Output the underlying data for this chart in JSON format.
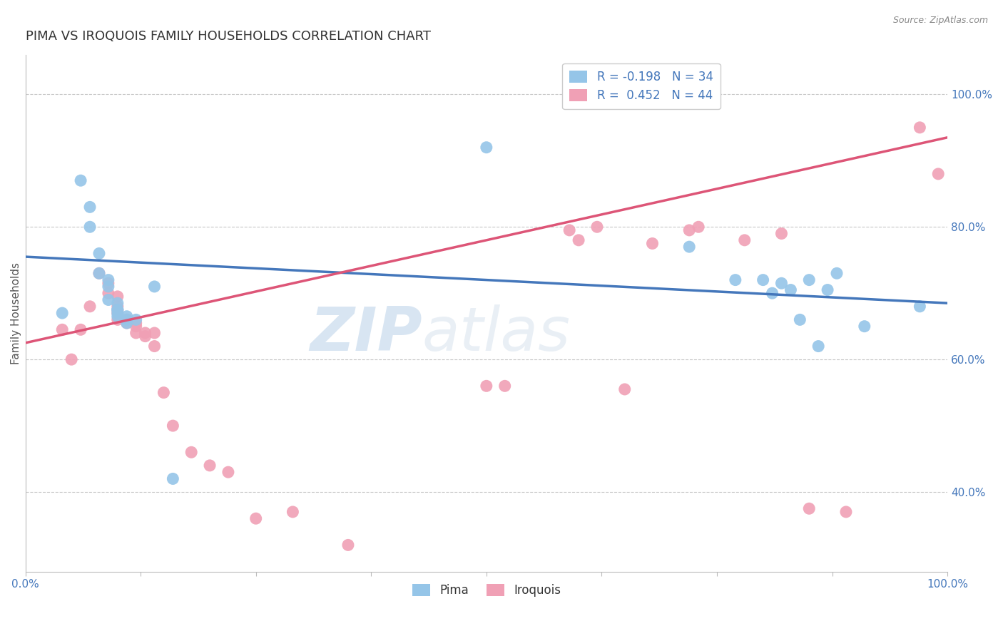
{
  "title": "PIMA VS IROQUOIS FAMILY HOUSEHOLDS CORRELATION CHART",
  "source": "Source: ZipAtlas.com",
  "ylabel": "Family Households",
  "xlim": [
    0,
    1.0
  ],
  "ylim": [
    0.28,
    1.06
  ],
  "background_color": "#ffffff",
  "grid_color": "#c8c8c8",
  "watermark_zip": "ZIP",
  "watermark_atlas": "atlas",
  "pima_color": "#95C5E8",
  "iroquois_color": "#F0A0B5",
  "pima_line_color": "#4477BB",
  "iroquois_line_color": "#DD5577",
  "pima_R": -0.198,
  "pima_N": 34,
  "iroquois_R": 0.452,
  "iroquois_N": 44,
  "pima_line_x0": 0.0,
  "pima_line_y0": 0.755,
  "pima_line_x1": 1.0,
  "pima_line_y1": 0.685,
  "iroquois_line_x0": 0.0,
  "iroquois_line_y0": 0.625,
  "iroquois_line_x1": 1.0,
  "iroquois_line_y1": 0.935,
  "pima_scatter_x": [
    0.04,
    0.06,
    0.07,
    0.07,
    0.08,
    0.08,
    0.09,
    0.09,
    0.09,
    0.1,
    0.1,
    0.1,
    0.1,
    0.1,
    0.11,
    0.11,
    0.11,
    0.12,
    0.14,
    0.16,
    0.5,
    0.72,
    0.77,
    0.8,
    0.81,
    0.82,
    0.83,
    0.84,
    0.85,
    0.86,
    0.87,
    0.88,
    0.91,
    0.97
  ],
  "pima_scatter_y": [
    0.67,
    0.87,
    0.83,
    0.8,
    0.76,
    0.73,
    0.72,
    0.71,
    0.69,
    0.685,
    0.675,
    0.675,
    0.67,
    0.665,
    0.665,
    0.66,
    0.655,
    0.66,
    0.71,
    0.42,
    0.92,
    0.77,
    0.72,
    0.72,
    0.7,
    0.715,
    0.705,
    0.66,
    0.72,
    0.62,
    0.705,
    0.73,
    0.65,
    0.68
  ],
  "iroquois_scatter_x": [
    0.04,
    0.05,
    0.06,
    0.07,
    0.08,
    0.09,
    0.09,
    0.1,
    0.1,
    0.1,
    0.1,
    0.1,
    0.11,
    0.11,
    0.12,
    0.12,
    0.12,
    0.13,
    0.13,
    0.14,
    0.14,
    0.15,
    0.16,
    0.18,
    0.2,
    0.22,
    0.25,
    0.29,
    0.35,
    0.5,
    0.52,
    0.59,
    0.6,
    0.62,
    0.65,
    0.68,
    0.72,
    0.73,
    0.78,
    0.82,
    0.85,
    0.89,
    0.97,
    0.99
  ],
  "iroquois_scatter_y": [
    0.645,
    0.6,
    0.645,
    0.68,
    0.73,
    0.715,
    0.7,
    0.695,
    0.68,
    0.675,
    0.67,
    0.66,
    0.66,
    0.655,
    0.655,
    0.65,
    0.64,
    0.64,
    0.635,
    0.64,
    0.62,
    0.55,
    0.5,
    0.46,
    0.44,
    0.43,
    0.36,
    0.37,
    0.32,
    0.56,
    0.56,
    0.795,
    0.78,
    0.8,
    0.555,
    0.775,
    0.795,
    0.8,
    0.78,
    0.79,
    0.375,
    0.37,
    0.95,
    0.88
  ],
  "right_ytick_labels": [
    "40.0%",
    "60.0%",
    "80.0%",
    "100.0%"
  ],
  "right_ytick_values": [
    0.4,
    0.6,
    0.8,
    1.0
  ],
  "xtick_labels": [
    "0.0%",
    "",
    "",
    "",
    "",
    "",
    "",
    "",
    "100.0%"
  ],
  "xtick_values": [
    0.0,
    0.125,
    0.25,
    0.375,
    0.5,
    0.625,
    0.75,
    0.875,
    1.0
  ],
  "bottom_xtick_labels": [
    "0.0%",
    "100.0%"
  ],
  "title_color": "#333333",
  "axis_color": "#4477BB",
  "legend_label_pima": "Pima",
  "legend_label_iroquois": "Iroquois"
}
